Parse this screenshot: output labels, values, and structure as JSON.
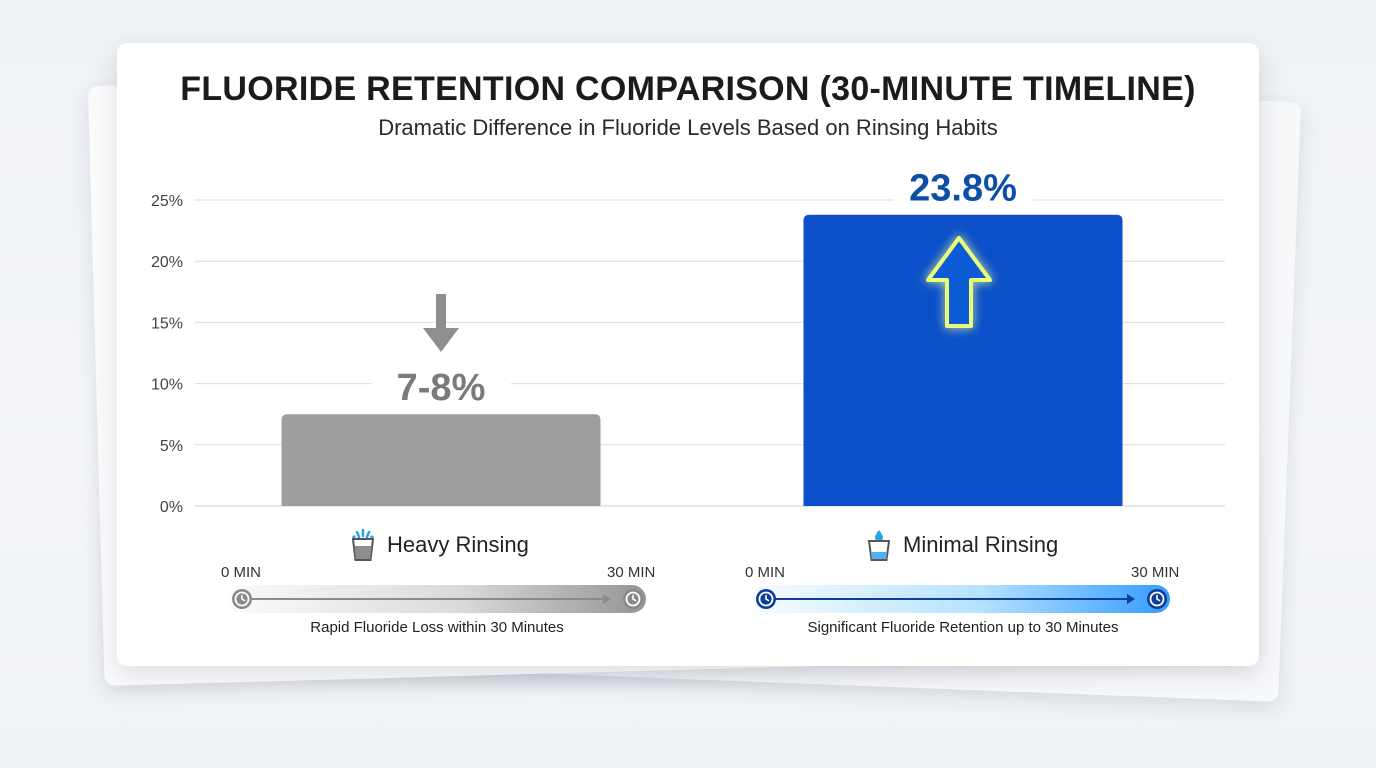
{
  "header": {
    "title": "FLUORIDE RETENTION COMPARISON (30-MINUTE TIMELINE)",
    "subtitle": "Dramatic Difference in Fluoride Levels Based on Rinsing Habits"
  },
  "chart_data": {
    "type": "bar",
    "title": "FLUORIDE RETENTION COMPARISON (30-MINUTE TIMELINE)",
    "subtitle": "Dramatic Difference in Fluoride Levels Based on Rinsing Habits",
    "categories": [
      "Heavy Rinsing",
      "Minimal Rinsing"
    ],
    "values": [
      7.5,
      23.8
    ],
    "value_labels": [
      "7-8%",
      "23.8%"
    ],
    "ylim": [
      0,
      25
    ],
    "yticks": [
      0,
      5,
      10,
      15,
      20,
      25
    ],
    "ytick_labels": [
      "0%",
      "5%",
      "10%",
      "15%",
      "20%",
      "25%"
    ],
    "grid": true,
    "colors": [
      "#9e9e9e",
      "#0b4fcb"
    ],
    "value_label_colors": [
      "#7a7a7a",
      "#0b4fa8"
    ],
    "arrows": [
      "down",
      "up"
    ]
  },
  "timelines": [
    {
      "start_label": "0 MIN",
      "end_label": "30 MIN",
      "caption": "Rapid Fluoride Loss within 30 Minutes",
      "color": "#8a8a8a"
    },
    {
      "start_label": "0 MIN",
      "end_label": "30 MIN",
      "caption": "Significant Fluoride Retention up to 30 Minutes",
      "color": "#0b3f99"
    }
  ],
  "icons": [
    "splashing-glass-icon",
    "water-drop-glass-icon",
    "clock-icon",
    "down-arrow-icon",
    "up-arrow-icon"
  ]
}
